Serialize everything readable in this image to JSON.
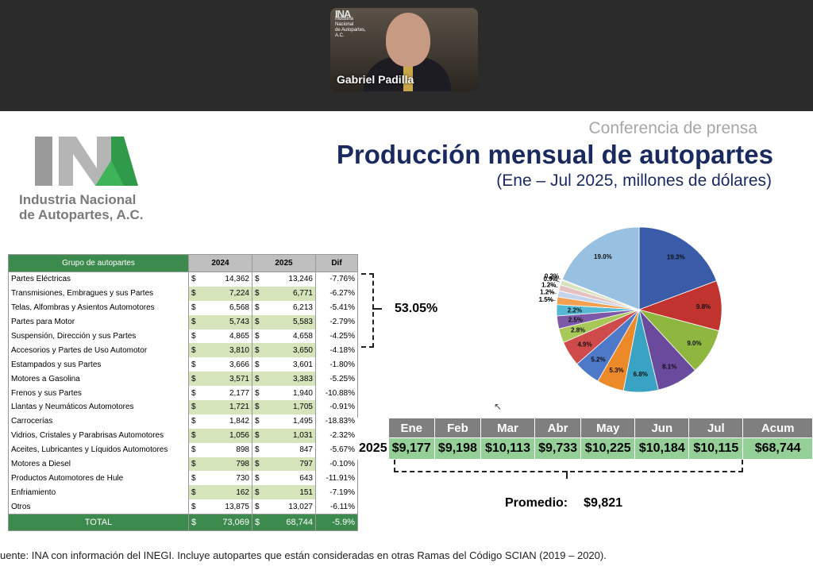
{
  "video": {
    "name": "Gabriel Padilla",
    "logo_lines": [
      "Industria Nacional",
      "de Autopartes, A.C."
    ]
  },
  "header": {
    "kicker": "Conferencia de prensa",
    "title": "Producción mensual de autopartes",
    "subtitle": "(Ene – Jul 2025, millones de dólares)"
  },
  "logo": {
    "line1": "Industria Nacional",
    "line2": "de Autopartes, A.C."
  },
  "table": {
    "headers": [
      "Grupo de autopartes",
      "2024",
      "2025",
      "Dif"
    ],
    "currency": "$",
    "rows": [
      {
        "name": "Partes Eléctricas",
        "y2024": "14,362",
        "y2025": "13,246",
        "dif": "-7.76%"
      },
      {
        "name": "Transmisiones, Embragues y sus Partes",
        "y2024": "7,224",
        "y2025": "6,771",
        "dif": "-6.27%"
      },
      {
        "name": "Telas, Alfombras y Asientos Automotores",
        "y2024": "6,568",
        "y2025": "6,213",
        "dif": "-5.41%"
      },
      {
        "name": "Partes para Motor",
        "y2024": "5,743",
        "y2025": "5,583",
        "dif": "-2.79%"
      },
      {
        "name": "Suspensión, Dirección y sus Partes",
        "y2024": "4,865",
        "y2025": "4,658",
        "dif": "-4.25%"
      },
      {
        "name": "Accesorios y Partes de Uso Automotor",
        "y2024": "3,810",
        "y2025": "3,650",
        "dif": "-4.18%"
      },
      {
        "name": "Estampados y sus Partes",
        "y2024": "3,666",
        "y2025": "3,601",
        "dif": "-1.80%"
      },
      {
        "name": "Motores a Gasolina",
        "y2024": "3,571",
        "y2025": "3,383",
        "dif": "-5.25%"
      },
      {
        "name": "Frenos y sus Partes",
        "y2024": "2,177",
        "y2025": "1,940",
        "dif": "-10.88%"
      },
      {
        "name": "Llantas y Neumáticos Automotores",
        "y2024": "1,721",
        "y2025": "1,705",
        "dif": "-0.91%"
      },
      {
        "name": "Carrocerías",
        "y2024": "1,842",
        "y2025": "1,495",
        "dif": "-18.83%"
      },
      {
        "name": "Vidrios, Cristales y Parabrisas Automotores",
        "y2024": "1,056",
        "y2025": "1,031",
        "dif": "-2.32%"
      },
      {
        "name": "Aceites, Lubricantes y Líquidos Automotores",
        "y2024": "898",
        "y2025": "847",
        "dif": "-5.67%"
      },
      {
        "name": "Motores a Diesel",
        "y2024": "798",
        "y2025": "797",
        "dif": "-0.10%"
      },
      {
        "name": "Productos Automotores de Hule",
        "y2024": "730",
        "y2025": "643",
        "dif": "-11.91%"
      },
      {
        "name": "Enfriamiento",
        "y2024": "162",
        "y2025": "151",
        "dif": "-7.19%"
      },
      {
        "name": "Otros",
        "y2024": "13,875",
        "y2025": "13,027",
        "dif": "-6.11%"
      }
    ],
    "total": {
      "name": "TOTAL",
      "y2024": "73,069",
      "y2025": "68,744",
      "dif": "-5.9%"
    }
  },
  "bracket_pct": "53.05%",
  "chart_data": {
    "type": "pie",
    "labels": [
      "19.3%",
      "9.8%",
      "9.0%",
      "8.1%",
      "6.8%",
      "5.3%",
      "5.2%",
      "4.9%",
      "2.8%",
      "2.5%",
      "2.2%",
      "1.5%",
      "1.2%",
      "1.2%",
      "0.9%",
      "0.2%",
      "19.0%"
    ],
    "values": [
      19.3,
      9.8,
      9.0,
      8.1,
      6.8,
      5.3,
      5.2,
      4.9,
      2.8,
      2.5,
      2.2,
      1.5,
      1.2,
      1.2,
      0.9,
      0.2,
      19.0
    ],
    "colors": [
      "#3a5ba8",
      "#c0332e",
      "#8fb63f",
      "#6a4a9c",
      "#3aa3c4",
      "#ec8a2a",
      "#4e78c8",
      "#cf4a4a",
      "#a8c85a",
      "#7d5aa8",
      "#55b8d4",
      "#f2a052",
      "#c4d3ec",
      "#e4c2c2",
      "#d6e3bd",
      "#cdc2dc",
      "#98c0e0"
    ]
  },
  "months": {
    "headers": [
      "Ene",
      "Feb",
      "Mar",
      "Abr",
      "May",
      "Jun",
      "Jul",
      "Acum"
    ],
    "year": "2025",
    "values": [
      "$9,177",
      "$9,198",
      "$10,113",
      "$9,733",
      "$10,225",
      "$10,184",
      "$10,115",
      "$68,744"
    ]
  },
  "promedio": {
    "label": "Promedio:",
    "value": "$9,821"
  },
  "footer": "uente: INA con información del INEGI. Incluye autopartes que están consideradas en otras Ramas del Código SCIAN (2019 – 2020)."
}
